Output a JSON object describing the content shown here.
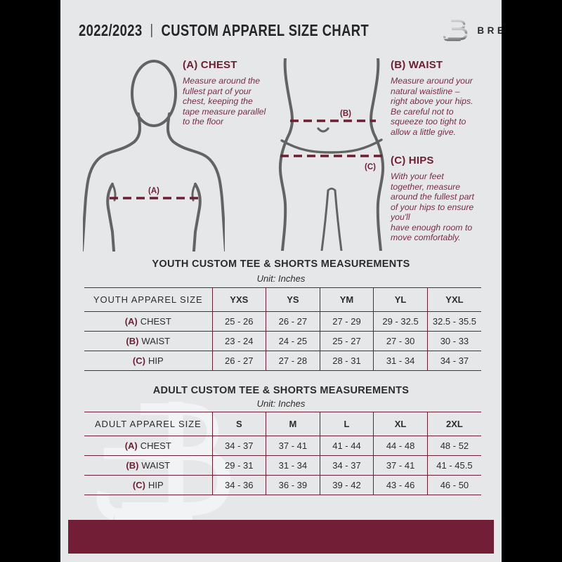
{
  "header": {
    "year": "2022/2023",
    "divider": "|",
    "title": "CUSTOM APPAREL SIZE CHART",
    "brand": "BREAKAWAY"
  },
  "sections": {
    "chest": {
      "heading": "(A) CHEST",
      "body": "Measure around the\nfullest part of your\nchest, keeping the\ntape measure parallel\nto the floor",
      "marker": "(A)"
    },
    "waist": {
      "heading": "(B) WAIST",
      "body": "Measure around your\nnatural waistline –\nright above your hips.\nBe careful not to\nsqueeze too tight to\nallow a little give.",
      "marker": "(B)"
    },
    "hips": {
      "heading": "(C) HIPS",
      "body": "With your feet\ntogether, measure\naround the fullest part\nof your hips to ensure\nyou'll\nhave enough room to\nmove comfortably.",
      "marker": "(C)"
    }
  },
  "youth_table": {
    "title": "YOUTH CUSTOM TEE & SHORTS MEASUREMENTS",
    "unit": "Unit: Inches",
    "header": [
      "YOUTH APPAREL SIZE",
      "YXS",
      "YS",
      "YM",
      "YL",
      "YXL"
    ],
    "rows": [
      {
        "prefix": "(A)",
        "label": "CHEST",
        "values": [
          "25 - 26",
          "26 - 27",
          "27 - 29",
          "29 - 32.5",
          "32.5 - 35.5"
        ]
      },
      {
        "prefix": "(B)",
        "label": "WAIST",
        "values": [
          "23 - 24",
          "24 - 25",
          "25 - 27",
          "27 - 30",
          "30 - 33"
        ]
      },
      {
        "prefix": "(C)",
        "label": "HIP",
        "values": [
          "26 - 27",
          "27 - 28",
          "28 - 31",
          "31 - 34",
          "34 - 37"
        ]
      }
    ]
  },
  "adult_table": {
    "title": "ADULT CUSTOM TEE & SHORTS MEASUREMENTS",
    "unit": "Unit: Inches",
    "header": [
      "ADULT APPAREL SIZE",
      "S",
      "M",
      "L",
      "XL",
      "2XL"
    ],
    "rows": [
      {
        "prefix": "(A)",
        "label": "CHEST",
        "values": [
          "34 - 37",
          "37 - 41",
          "41 - 44",
          "44 - 48",
          "48 - 52"
        ]
      },
      {
        "prefix": "(B)",
        "label": "WAIST",
        "values": [
          "29 - 31",
          "31 - 34",
          "34 - 37",
          "37 - 41",
          "41 - 45.5"
        ]
      },
      {
        "prefix": "(C)",
        "label": "HIP",
        "values": [
          "34 - 36",
          "36 - 39",
          "39 - 42",
          "43 - 46",
          "46 - 50"
        ]
      }
    ]
  },
  "colors": {
    "maroon": "#6E1E33",
    "footer_maroon": "#721E36",
    "paper_bg": "#e6e7e9",
    "figure_stroke": "#636363"
  }
}
